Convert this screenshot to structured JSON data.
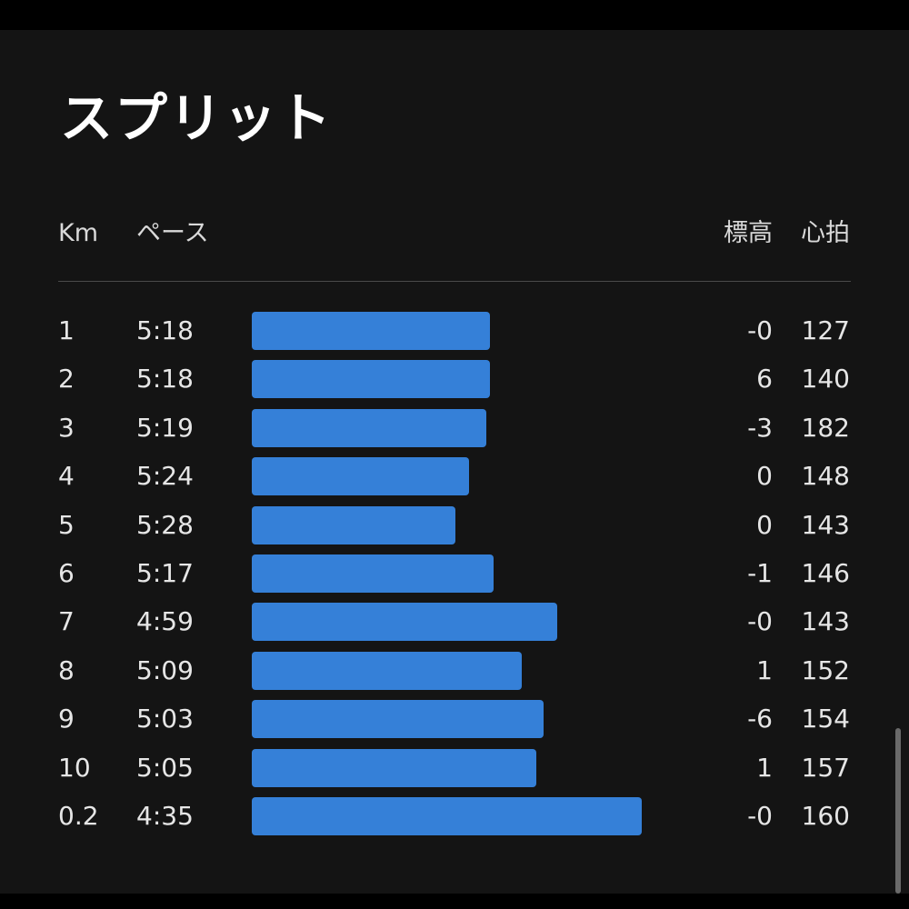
{
  "title": "スプリット",
  "headers": {
    "km": "Km",
    "pace": "ペース",
    "elevation": "標高",
    "heart_rate": "心拍"
  },
  "colors": {
    "background": "#141414",
    "bar": "#3580d8",
    "text": "#e6e6e6"
  },
  "splits": [
    {
      "km": "1",
      "pace": "5:18",
      "elevation": "-0",
      "heart_rate": "127"
    },
    {
      "km": "2",
      "pace": "5:18",
      "elevation": "6",
      "heart_rate": "140"
    },
    {
      "km": "3",
      "pace": "5:19",
      "elevation": "-3",
      "heart_rate": "182"
    },
    {
      "km": "4",
      "pace": "5:24",
      "elevation": "0",
      "heart_rate": "148"
    },
    {
      "km": "5",
      "pace": "5:28",
      "elevation": "0",
      "heart_rate": "143"
    },
    {
      "km": "6",
      "pace": "5:17",
      "elevation": "-1",
      "heart_rate": "146"
    },
    {
      "km": "7",
      "pace": "4:59",
      "elevation": "-0",
      "heart_rate": "143"
    },
    {
      "km": "8",
      "pace": "5:09",
      "elevation": "1",
      "heart_rate": "152"
    },
    {
      "km": "9",
      "pace": "5:03",
      "elevation": "-6",
      "heart_rate": "154"
    },
    {
      "km": "10",
      "pace": "5:05",
      "elevation": "1",
      "heart_rate": "157"
    },
    {
      "km": "0.2",
      "pace": "4:35",
      "elevation": "-0",
      "heart_rate": "160"
    }
  ]
}
